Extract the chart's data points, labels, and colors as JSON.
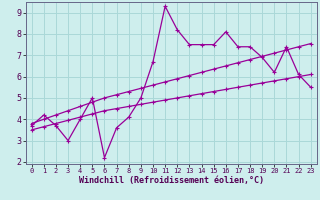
{
  "xlabel": "Windchill (Refroidissement éolien,°C)",
  "ylabel": "",
  "background_color": "#ceeeed",
  "grid_color": "#aad8d8",
  "line_color": "#990099",
  "x_data": [
    0,
    1,
    2,
    3,
    4,
    5,
    6,
    7,
    8,
    9,
    10,
    11,
    12,
    13,
    14,
    15,
    16,
    17,
    18,
    19,
    20,
    21,
    22,
    23
  ],
  "y_main": [
    3.7,
    4.2,
    3.7,
    3.0,
    4.0,
    5.0,
    2.2,
    3.6,
    4.1,
    5.0,
    6.7,
    9.3,
    8.2,
    7.5,
    7.5,
    7.5,
    8.1,
    7.4,
    7.4,
    6.9,
    6.2,
    7.4,
    6.1,
    5.5
  ],
  "y_upper": [
    3.8,
    4.0,
    4.2,
    4.4,
    4.6,
    4.8,
    5.0,
    5.15,
    5.3,
    5.45,
    5.6,
    5.75,
    5.9,
    6.05,
    6.2,
    6.35,
    6.5,
    6.65,
    6.8,
    6.95,
    7.1,
    7.25,
    7.4,
    7.55
  ],
  "y_lower": [
    3.5,
    3.65,
    3.8,
    3.95,
    4.1,
    4.25,
    4.4,
    4.5,
    4.6,
    4.7,
    4.8,
    4.9,
    5.0,
    5.1,
    5.2,
    5.3,
    5.4,
    5.5,
    5.6,
    5.7,
    5.8,
    5.9,
    6.0,
    6.1
  ],
  "ylim": [
    1.9,
    9.5
  ],
  "xlim": [
    -0.5,
    23.5
  ],
  "yticks": [
    2,
    3,
    4,
    5,
    6,
    7,
    8,
    9
  ],
  "xticks": [
    0,
    1,
    2,
    3,
    4,
    5,
    6,
    7,
    8,
    9,
    10,
    11,
    12,
    13,
    14,
    15,
    16,
    17,
    18,
    19,
    20,
    21,
    22,
    23
  ],
  "marker": "+",
  "marker_size": 3,
  "linewidth": 0.9,
  "xlabel_fontsize": 6,
  "tick_fontsize_x": 5,
  "tick_fontsize_y": 6
}
